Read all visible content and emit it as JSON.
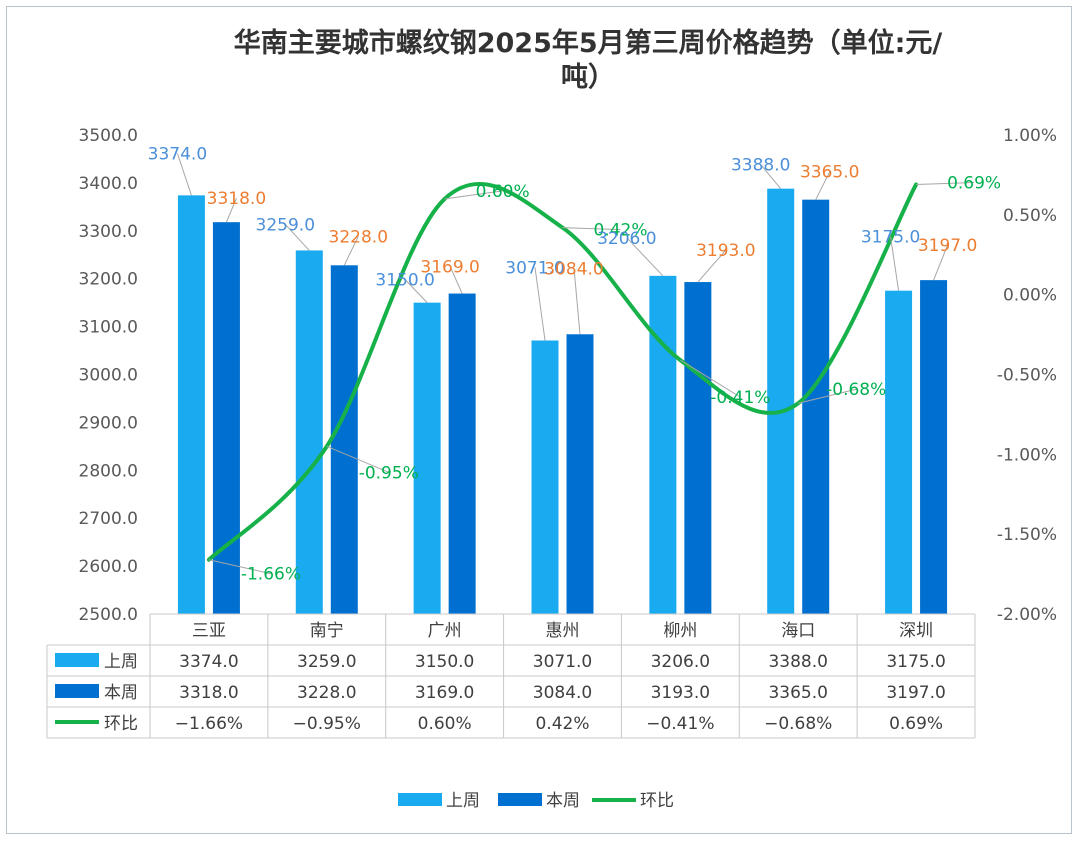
{
  "colors": {
    "prev_week": "#1aaaf0",
    "this_week": "#0070d0",
    "wow": "#17b14a",
    "label_prev": "#4a8fd9",
    "label_cur": "#ed7d31",
    "label_wow": "#00b050"
  },
  "chart_data": {
    "type": "bar",
    "title": "华南主要城市螺纹钢2025年5月第三周价格趋势（单位:元/吨）",
    "title_lines": [
      "华南主要城市螺纹钢2025年5月第三周价格趋势（单位:元/",
      "吨）"
    ],
    "categories": [
      "三亚",
      "南宁",
      "广州",
      "惠州",
      "柳州",
      "海口",
      "深圳"
    ],
    "series": [
      {
        "name": "上周",
        "type": "bar",
        "axis": "left",
        "values": [
          3374.0,
          3259.0,
          3150.0,
          3071.0,
          3206.0,
          3388.0,
          3175.0
        ],
        "labels": [
          "3374.0",
          "3259.0",
          "3150.0",
          "3071.0",
          "3206.0",
          "3388.0",
          "3175.0"
        ]
      },
      {
        "name": "本周",
        "type": "bar",
        "axis": "left",
        "values": [
          3318.0,
          3228.0,
          3169.0,
          3084.0,
          3193.0,
          3365.0,
          3197.0
        ],
        "labels": [
          "3318.0",
          "3228.0",
          "3169.0",
          "3084.0",
          "3193.0",
          "3365.0",
          "3197.0"
        ]
      },
      {
        "name": "环比",
        "type": "line",
        "axis": "right",
        "values": [
          -1.66,
          -0.95,
          0.6,
          0.42,
          -0.41,
          -0.68,
          0.69
        ],
        "labels": [
          "-1.66%",
          "-0.95%",
          "0.60%",
          "0.42%",
          "-0.41%",
          "-0.68%",
          "0.69%"
        ]
      }
    ],
    "y_left": {
      "min": 2500,
      "max": 3500,
      "step": 100,
      "ticks": [
        "2500.0",
        "2600.0",
        "2700.0",
        "2800.0",
        "2900.0",
        "3000.0",
        "3100.0",
        "3200.0",
        "3300.0",
        "3400.0",
        "3500.0"
      ]
    },
    "y_right": {
      "min": -2.0,
      "max": 1.0,
      "step": 0.5,
      "ticks": [
        "-2.00%",
        "-1.50%",
        "-1.00%",
        "-0.50%",
        "0.00%",
        "0.50%",
        "1.00%"
      ]
    },
    "table": {
      "rows": [
        {
          "name": "上周",
          "cells": [
            "3374.0",
            "3259.0",
            "3150.0",
            "3071.0",
            "3206.0",
            "3388.0",
            "3175.0"
          ]
        },
        {
          "name": "本周",
          "cells": [
            "3318.0",
            "3228.0",
            "3169.0",
            "3084.0",
            "3193.0",
            "3365.0",
            "3197.0"
          ]
        },
        {
          "name": "环比",
          "cells": [
            "−1.66%",
            "−0.95%",
            "0.60%",
            "0.42%",
            "−0.41%",
            "−0.68%",
            "0.69%"
          ]
        }
      ]
    },
    "legend": [
      "上周",
      "本周",
      "环比"
    ],
    "legend_position": "bottom",
    "grid": false
  }
}
